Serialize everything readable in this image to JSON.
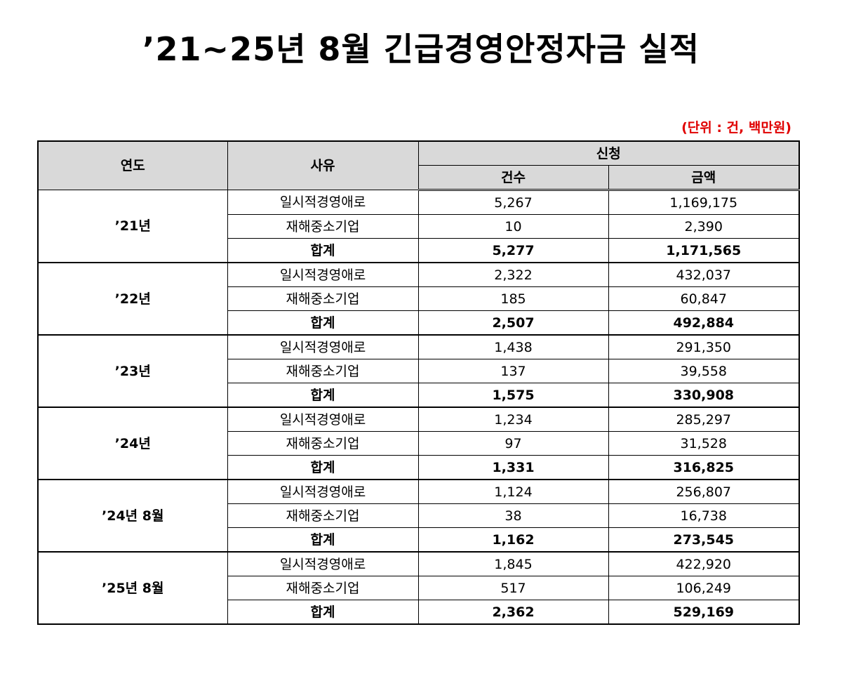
{
  "title": "’21~25년 8월 긴급경영안정자금 실적",
  "unit_note": "(단위 : 건, 백만원)",
  "table": {
    "headers": {
      "year": "연도",
      "reason": "사유",
      "application": "신청",
      "count": "건수",
      "amount": "금액"
    },
    "groups": [
      {
        "year": "’21년",
        "rows": [
          {
            "reason": "일시적경영애로",
            "count": "5,267",
            "amount": "1,169,175"
          },
          {
            "reason": "재해중소기업",
            "count": "10",
            "amount": "2,390"
          },
          {
            "reason": "합계",
            "count": "5,277",
            "amount": "1,171,565"
          }
        ]
      },
      {
        "year": "’22년",
        "rows": [
          {
            "reason": "일시적경영애로",
            "count": "2,322",
            "amount": "432,037"
          },
          {
            "reason": "재해중소기업",
            "count": "185",
            "amount": "60,847"
          },
          {
            "reason": "합계",
            "count": "2,507",
            "amount": "492,884"
          }
        ]
      },
      {
        "year": "’23년",
        "rows": [
          {
            "reason": "일시적경영애로",
            "count": "1,438",
            "amount": "291,350"
          },
          {
            "reason": "재해중소기업",
            "count": "137",
            "amount": "39,558"
          },
          {
            "reason": "합계",
            "count": "1,575",
            "amount": "330,908"
          }
        ]
      },
      {
        "year": "’24년",
        "rows": [
          {
            "reason": "일시적경영애로",
            "count": "1,234",
            "amount": "285,297"
          },
          {
            "reason": "재해중소기업",
            "count": "97",
            "amount": "31,528"
          },
          {
            "reason": "합계",
            "count": "1,331",
            "amount": "316,825"
          }
        ]
      },
      {
        "year": "’24년 8월",
        "rows": [
          {
            "reason": "일시적경영애로",
            "count": "1,124",
            "amount": "256,807"
          },
          {
            "reason": "재해중소기업",
            "count": "38",
            "amount": "16,738"
          },
          {
            "reason": "합계",
            "count": "1,162",
            "amount": "273,545"
          }
        ]
      },
      {
        "year": "’25년 8월",
        "rows": [
          {
            "reason": "일시적경영애로",
            "count": "1,845",
            "amount": "422,920"
          },
          {
            "reason": "재해중소기업",
            "count": "517",
            "amount": "106,249"
          },
          {
            "reason": "합계",
            "count": "2,362",
            "amount": "529,169"
          }
        ]
      }
    ]
  }
}
